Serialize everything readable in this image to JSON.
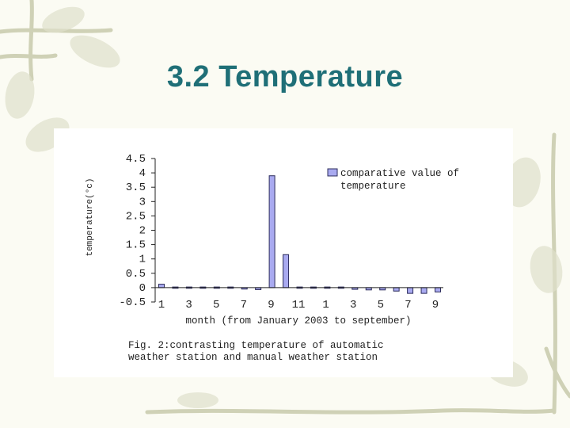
{
  "slide": {
    "title": "3.2 Temperature"
  },
  "figure": {
    "caption_line1": "Fig. 2:contrasting temperature of automatic",
    "caption_line2": "weather station and manual weather station"
  },
  "colors": {
    "title": "#1f6f77",
    "bar_fill": "#a9aaf0",
    "bar_stroke": "#2c2c5c",
    "vine": "#c9cbb0"
  },
  "chart_data": {
    "type": "bar",
    "ylabel": "temperature(°c)",
    "xlabel": "month (from January 2003 to september)",
    "ylim": [
      -0.5,
      4.5
    ],
    "yticks": [
      -0.5,
      0,
      0.5,
      1,
      1.5,
      2,
      2.5,
      3,
      3.5,
      4,
      4.5
    ],
    "ytick_labels": [
      "-0.5",
      "0",
      "0.5",
      "1",
      "1.5",
      "2",
      "2.5",
      "3",
      "3.5",
      "4",
      "4.5"
    ],
    "xtick_labels": [
      "1",
      "3",
      "5",
      "7",
      "9",
      "11",
      "1",
      "3",
      "5",
      "7",
      "9"
    ],
    "grid": false,
    "legend": {
      "placement": "top-right",
      "line1": "comparative value of",
      "line2": "temperature"
    },
    "series": [
      {
        "name": "comparative value of temperature",
        "values": [
          0.12,
          0.02,
          -0.03,
          0,
          -0.03,
          -0.04,
          -0.05,
          -0.07,
          3.9,
          1.15,
          -0.03,
          0.02,
          0.02,
          0,
          -0.06,
          -0.08,
          -0.08,
          -0.12,
          -0.2,
          -0.2,
          -0.15
        ]
      }
    ]
  }
}
